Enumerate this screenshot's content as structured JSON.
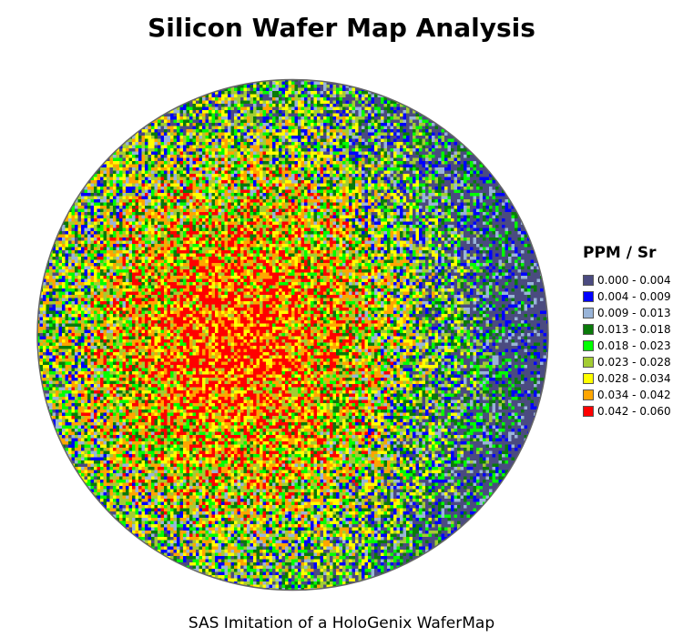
{
  "chart_data": {
    "type": "heatmap",
    "title": "Silicon Wafer Map Analysis",
    "footnote": "SAS Imitation of a HoloGenix WaferMap",
    "legend": {
      "title": "PPM / Sr",
      "placement": "right",
      "bins": [
        {
          "label": "0.000 - 0.004",
          "min": 0.0,
          "max": 0.004,
          "color": "#4b4b80"
        },
        {
          "label": "0.004 - 0.009",
          "min": 0.004,
          "max": 0.009,
          "color": "#0000ff"
        },
        {
          "label": "0.009 - 0.013",
          "min": 0.009,
          "max": 0.013,
          "color": "#99b4d8"
        },
        {
          "label": "0.013 - 0.018",
          "min": 0.013,
          "max": 0.018,
          "color": "#0a7a0a"
        },
        {
          "label": "0.018 - 0.023",
          "min": 0.018,
          "max": 0.023,
          "color": "#00ff00"
        },
        {
          "label": "0.023 - 0.028",
          "min": 0.023,
          "max": 0.028,
          "color": "#a3cc33"
        },
        {
          "label": "0.028 - 0.034",
          "min": 0.028,
          "max": 0.034,
          "color": "#ffff00"
        },
        {
          "label": "0.034 - 0.042",
          "min": 0.034,
          "max": 0.042,
          "color": "#ffa500"
        },
        {
          "label": "0.042 - 0.060",
          "min": 0.042,
          "max": 0.06,
          "color": "#ff0000"
        }
      ]
    },
    "trend": "higher values (red/yellow) concentrated left of center, decreasing toward low values (blue) at the right edge",
    "value_range": [
      0.0,
      0.06
    ]
  }
}
